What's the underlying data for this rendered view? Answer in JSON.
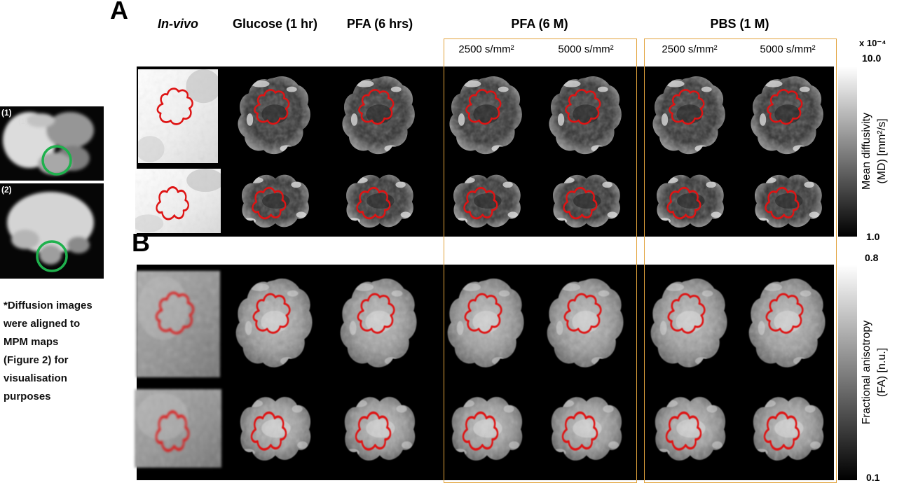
{
  "panels": {
    "a": "A",
    "b": "B"
  },
  "columns": {
    "invivo": "In-vivo",
    "glucose": "Glucose (1 hr)",
    "pfa_6hrs": "PFA (6 hrs)",
    "pfa_6m": "PFA (6 M)",
    "pbs_1m": "PBS (1 M)"
  },
  "bvalues": {
    "b2500": "2500 s/mm²",
    "b5000": "5000 s/mm²"
  },
  "colorbar_md": {
    "scale": "x 10⁻⁴",
    "max": "10.0",
    "min": "1.0",
    "label_line1": "Mean diffusivity",
    "label_line2": "(MD) [mm²/s]"
  },
  "colorbar_fa": {
    "max": "0.8",
    "min": "0.1",
    "label_line1": "Fractional anisotropy",
    "label_line2": "(FA) [n.u.]"
  },
  "reference_images": {
    "label_1": "(1)",
    "label_1_inner": "(1)",
    "label_2": "(2)"
  },
  "note": "*Diffusion images were aligned to MPM maps (Figure 2) for visualisation purposes",
  "colors": {
    "group_box_border": "#e2a33c",
    "roi_contour": "#de1414",
    "highlight_circle": "#1fb14d"
  }
}
